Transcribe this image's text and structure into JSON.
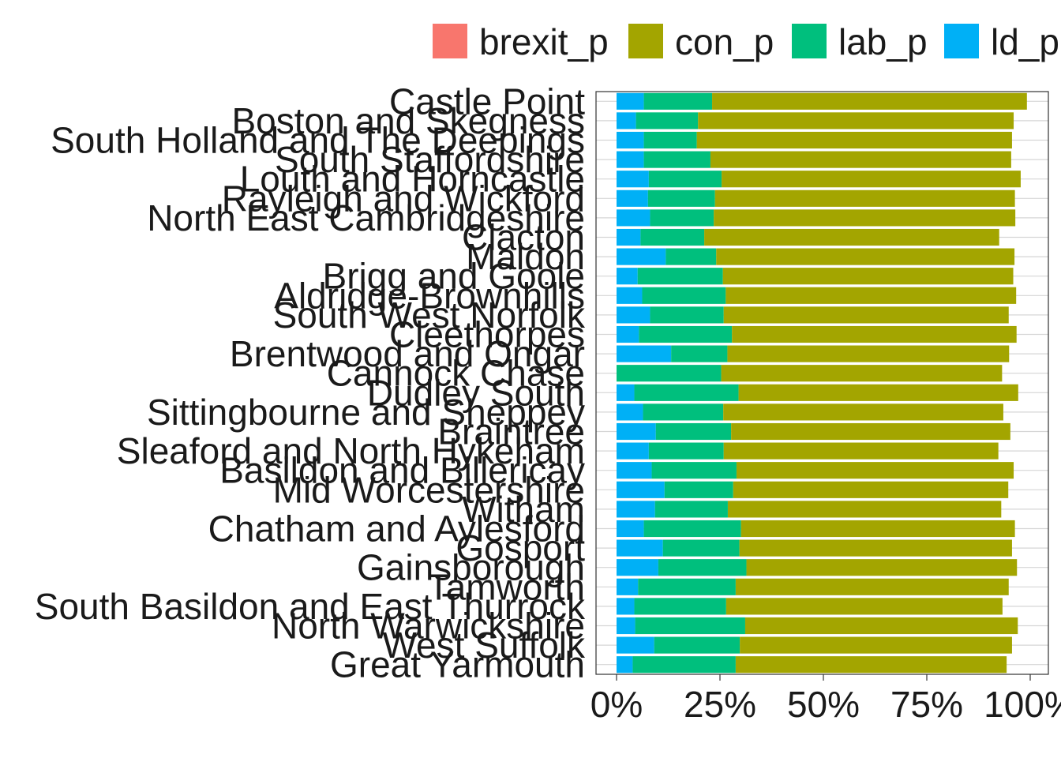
{
  "chart_data": {
    "type": "bar",
    "orientation": "horizontal",
    "stacked": true,
    "categories": [
      "Castle Point",
      "Boston and Skegness",
      "South Holland and The Deepings",
      "South Staffordshire",
      "Louth and Horncastle",
      "Rayleigh and Wickford",
      "North East Cambridgeshire",
      "Clacton",
      "Maldon",
      "Brigg and Goole",
      "Aldridge-Brownhills",
      "South West Norfolk",
      "Cleethorpes",
      "Brentwood and Ongar",
      "Cannock Chase",
      "Dudley South",
      "Sittingbourne and Sheppey",
      "Braintree",
      "Sleaford and North Hykeham",
      "Basildon and Billericay",
      "Mid Worcestershire",
      "Witham",
      "Chatham and Aylesford",
      "Gosport",
      "Gainsborough",
      "Tamworth",
      "South Basildon and East Thurrock",
      "North Warwickshire",
      "West Suffolk",
      "Great Yarmouth"
    ],
    "series": [
      {
        "name": "ld_p",
        "color": "#00B0F6",
        "values": [
          6.6,
          4.7,
          6.6,
          6.6,
          7.8,
          7.6,
          8.1,
          5.8,
          11.9,
          5.1,
          6.2,
          8.1,
          5.4,
          13.2,
          0.0,
          4.3,
          6.4,
          9.5,
          7.8,
          8.5,
          11.6,
          9.3,
          6.6,
          11.2,
          10.1,
          5.2,
          4.3,
          4.5,
          9.1,
          3.9
        ]
      },
      {
        "name": "lab_p",
        "color": "#00BF7D",
        "values": [
          16.5,
          15.0,
          12.8,
          16.1,
          17.6,
          16.2,
          15.4,
          15.4,
          12.2,
          20.6,
          20.2,
          17.8,
          22.5,
          13.6,
          25.3,
          25.2,
          19.4,
          18.2,
          18.1,
          20.5,
          16.6,
          17.6,
          23.5,
          18.5,
          21.3,
          23.6,
          22.2,
          26.6,
          20.7,
          24.9
        ]
      },
      {
        "name": "con_p",
        "color": "#A3A500",
        "values": [
          76.1,
          76.3,
          76.2,
          72.7,
          72.3,
          72.5,
          72.9,
          71.3,
          72.1,
          70.2,
          70.2,
          68.9,
          68.8,
          68.1,
          67.9,
          67.6,
          67.7,
          67.5,
          66.4,
          67.0,
          66.5,
          66.1,
          66.2,
          65.9,
          65.4,
          66.0,
          66.8,
          65.9,
          65.8,
          65.5
        ]
      },
      {
        "name": "brexit_p",
        "color": "#F8766D",
        "values": [
          0,
          0,
          0,
          0,
          0,
          0,
          0,
          0,
          0,
          0,
          0,
          0,
          0,
          0,
          0,
          0,
          0,
          0,
          0,
          0,
          0,
          0,
          0,
          0,
          0,
          0,
          0,
          0,
          0,
          0
        ]
      }
    ],
    "legend_order": [
      "brexit_p",
      "con_p",
      "lab_p",
      "ld_p"
    ],
    "legend_position": "top",
    "xlim": [
      0,
      100
    ],
    "x_ticks": [
      0,
      25,
      50,
      75,
      100
    ],
    "x_tick_labels": [
      "0%",
      "25%",
      "50%",
      "75%",
      "100%"
    ],
    "grid": true,
    "title": "",
    "xlabel": "",
    "ylabel": ""
  }
}
